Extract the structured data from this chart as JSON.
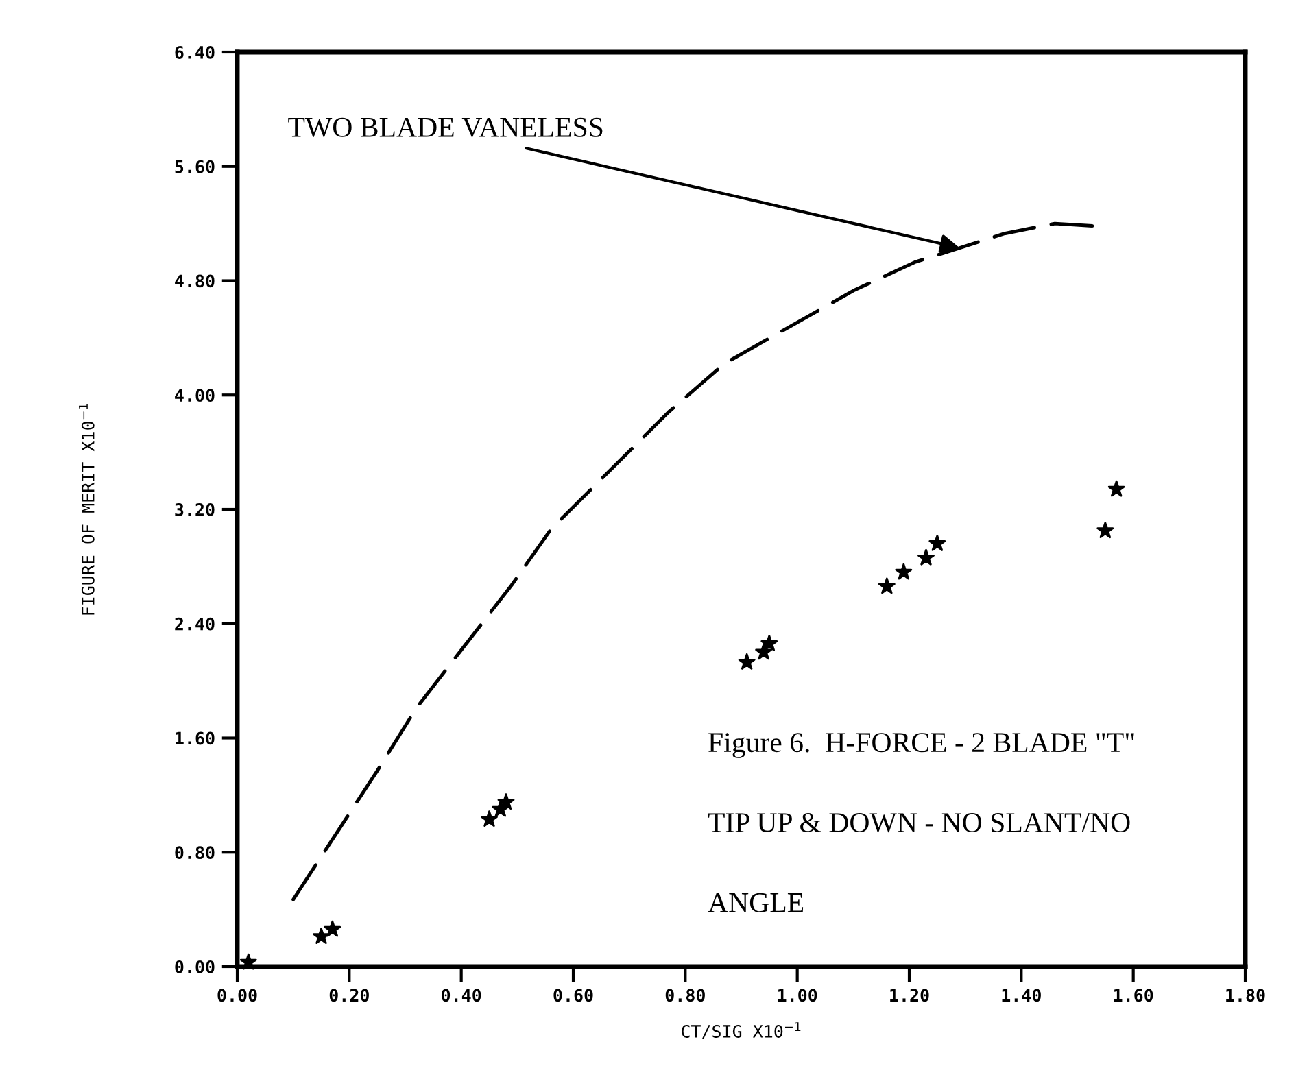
{
  "chart_data": {
    "type": "scatter",
    "xlabel": "CT/SIG X10$^{−1}$",
    "ylabel": "FIGURE OF MERIT X10$^{−1}$",
    "xlim": [
      0,
      1.8
    ],
    "ylim": [
      0,
      6.4
    ],
    "xticks": [
      {
        "value": 0,
        "label": "0.00"
      },
      {
        "value": 0.2,
        "label": "0.20"
      },
      {
        "value": 0.4,
        "label": "0.40"
      },
      {
        "value": 0.6,
        "label": "0.60"
      },
      {
        "value": 0.8,
        "label": "0.80"
      },
      {
        "value": 1.0,
        "label": "1.00"
      },
      {
        "value": 1.2,
        "label": "1.20"
      },
      {
        "value": 1.4,
        "label": "1.40"
      },
      {
        "value": 1.6,
        "label": "1.60"
      },
      {
        "value": 1.8,
        "label": "1.80"
      }
    ],
    "yticks": [
      {
        "value": 0,
        "label": "0.00"
      },
      {
        "value": 0.8,
        "label": "0.80"
      },
      {
        "value": 1.6,
        "label": "1.60"
      },
      {
        "value": 2.4,
        "label": "2.40"
      },
      {
        "value": 3.2,
        "label": "3.20"
      },
      {
        "value": 4.0,
        "label": "4.00"
      },
      {
        "value": 4.8,
        "label": "4.80"
      },
      {
        "value": 5.6,
        "label": "5.60"
      },
      {
        "value": 6.4,
        "label": "6.40"
      }
    ],
    "grid": false,
    "legend": false,
    "series": [
      {
        "type": "line",
        "color": "#000000",
        "line_style": "dashed",
        "marker": "none",
        "x": [
          0.1,
          0.25,
          0.32,
          0.49,
          0.56,
          0.77,
          0.87,
          1.1,
          1.21,
          1.37,
          1.46,
          1.54
        ],
        "values": [
          0.47,
          1.37,
          1.81,
          2.67,
          3.06,
          3.88,
          4.22,
          4.73,
          4.93,
          5.13,
          5.2,
          5.18
        ]
      },
      {
        "color": "#000000",
        "marker": "star",
        "x": [
          0.02,
          0.15,
          0.17,
          0.45,
          0.47,
          0.48,
          0.91,
          0.94,
          0.95,
          1.16,
          1.19,
          1.23,
          1.25,
          1.55,
          1.57
        ],
        "values": [
          0.03,
          0.21,
          0.26,
          1.03,
          1.1,
          1.15,
          2.13,
          2.2,
          2.26,
          2.66,
          2.76,
          2.86,
          2.96,
          3.05,
          3.34
        ]
      }
    ],
    "annotations": [
      {
        "text": "TWO BLADE VANELESS",
        "x": 1.29,
        "y": 5.03
      },
      "Figure 6.  H-FORCE - 2 BLADE \"T\"",
      "TIP UP & DOWN - NO SLANT/NO",
      "ANGLE"
    ]
  }
}
